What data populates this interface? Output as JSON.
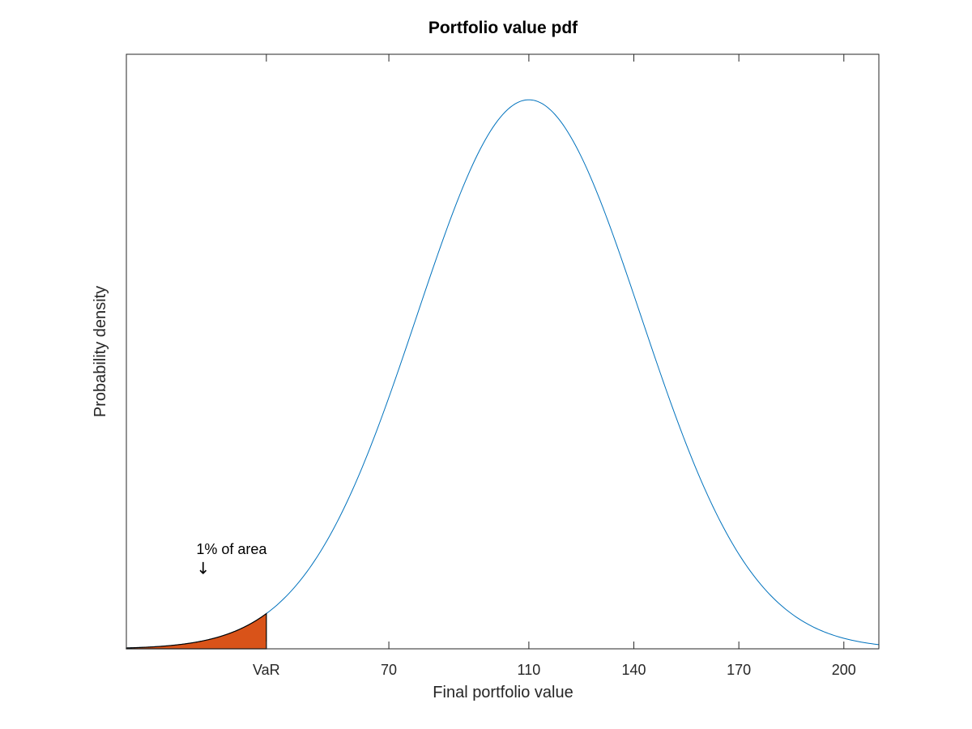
{
  "chart_data": {
    "type": "area",
    "title": "Portfolio value pdf",
    "xlabel": "Final portfolio value",
    "ylabel": "Probability density",
    "xlim": [
      -5,
      210
    ],
    "ylim": [
      0,
      0.0135
    ],
    "xticks": [
      {
        "value": 35,
        "label": "VaR"
      },
      {
        "value": 70,
        "label": "70"
      },
      {
        "value": 110,
        "label": "110"
      },
      {
        "value": 140,
        "label": "140"
      },
      {
        "value": 170,
        "label": "170"
      },
      {
        "value": 200,
        "label": "200"
      }
    ],
    "yticks": [],
    "grid": false,
    "legend": "none",
    "series": [
      {
        "type": "line",
        "color": "#0072bd",
        "distribution": "normal",
        "mean": 110,
        "std": 32,
        "x_range": [
          -5,
          210
        ]
      },
      {
        "type": "area",
        "color": "#d95319",
        "edge_color": "#000000",
        "distribution": "normal",
        "mean": 110,
        "std": 32,
        "x_range": [
          -5,
          35
        ]
      }
    ],
    "annotations": [
      {
        "text": "1% of area",
        "x": 15,
        "y": 0.00215
      },
      {
        "text": "↓",
        "x": 15,
        "y": 0.0017
      }
    ]
  }
}
